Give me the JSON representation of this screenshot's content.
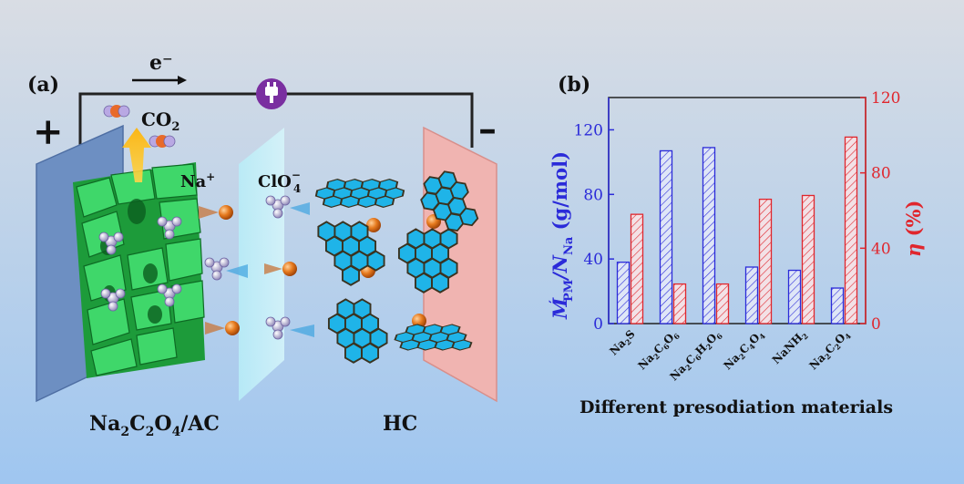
{
  "panel_a": {
    "label": "(a)",
    "electron": "e⁻",
    "plus": "+",
    "minus": "–",
    "co2": "CO",
    "co2_sub": "2",
    "na_ion": "Na",
    "na_sup": "+",
    "clo4": "ClO",
    "clo4_sub": "4",
    "clo4_sup": "−",
    "cathode_label": {
      "p1": "Na",
      "s1": "2",
      "p2": "C",
      "s2": "2",
      "p3": "O",
      "s3": "4",
      "p4": "/AC"
    },
    "anode_label": "HC"
  },
  "panel_b": {
    "label": "(b)",
    "xlabel": "Different presodiation materials",
    "ylabel_left": {
      "main": "M",
      "prime": "′",
      "sub1": "PM",
      "slash": "/N",
      "sub2": "Na",
      "unit": " (g/mol)"
    },
    "ylabel_right": {
      "main": "η",
      "unit": " (%)"
    }
  },
  "chart_data": {
    "type": "bar",
    "categories": [
      "Na2S",
      "Na2C6O6",
      "Na2C6H2O6",
      "Na2C4O4",
      "NaNH2",
      "Na2C2O4"
    ],
    "category_parts": [
      [
        [
          "Na",
          ""
        ],
        [
          "2",
          "sub"
        ],
        [
          "S",
          ""
        ]
      ],
      [
        [
          "Na",
          ""
        ],
        [
          "2",
          "sub"
        ],
        [
          "C",
          ""
        ],
        [
          "6",
          "sub"
        ],
        [
          "O",
          ""
        ],
        [
          "6",
          "sub"
        ]
      ],
      [
        [
          "Na",
          ""
        ],
        [
          "2",
          "sub"
        ],
        [
          "C",
          ""
        ],
        [
          "6",
          "sub"
        ],
        [
          "H",
          ""
        ],
        [
          "2",
          "sub"
        ],
        [
          "O",
          ""
        ],
        [
          "6",
          "sub"
        ]
      ],
      [
        [
          "Na",
          ""
        ],
        [
          "2",
          "sub"
        ],
        [
          "C",
          ""
        ],
        [
          "4",
          "sub"
        ],
        [
          "O",
          ""
        ],
        [
          "4",
          "sub"
        ]
      ],
      [
        [
          "NaNH",
          ""
        ],
        [
          "2",
          "sub"
        ]
      ],
      [
        [
          "Na",
          ""
        ],
        [
          "2",
          "sub"
        ],
        [
          "C",
          ""
        ],
        [
          "2",
          "sub"
        ],
        [
          "O",
          ""
        ],
        [
          "4",
          "sub"
        ]
      ]
    ],
    "series": [
      {
        "axis": "left",
        "values": [
          38,
          107,
          109,
          35,
          33,
          22
        ],
        "color": "#2b2bd9"
      },
      {
        "axis": "right",
        "values": [
          58,
          21,
          21,
          66,
          68,
          99
        ],
        "color": "#e0262d"
      }
    ],
    "ylim_left": [
      0,
      140
    ],
    "yticks_left": [
      0,
      40,
      80,
      120
    ],
    "ylim_right": [
      0,
      120
    ],
    "yticks_right": [
      0,
      40,
      80,
      120
    ],
    "left_axis_color": "#2b2bd9",
    "right_axis_color": "#e0262d",
    "grid": false
  }
}
